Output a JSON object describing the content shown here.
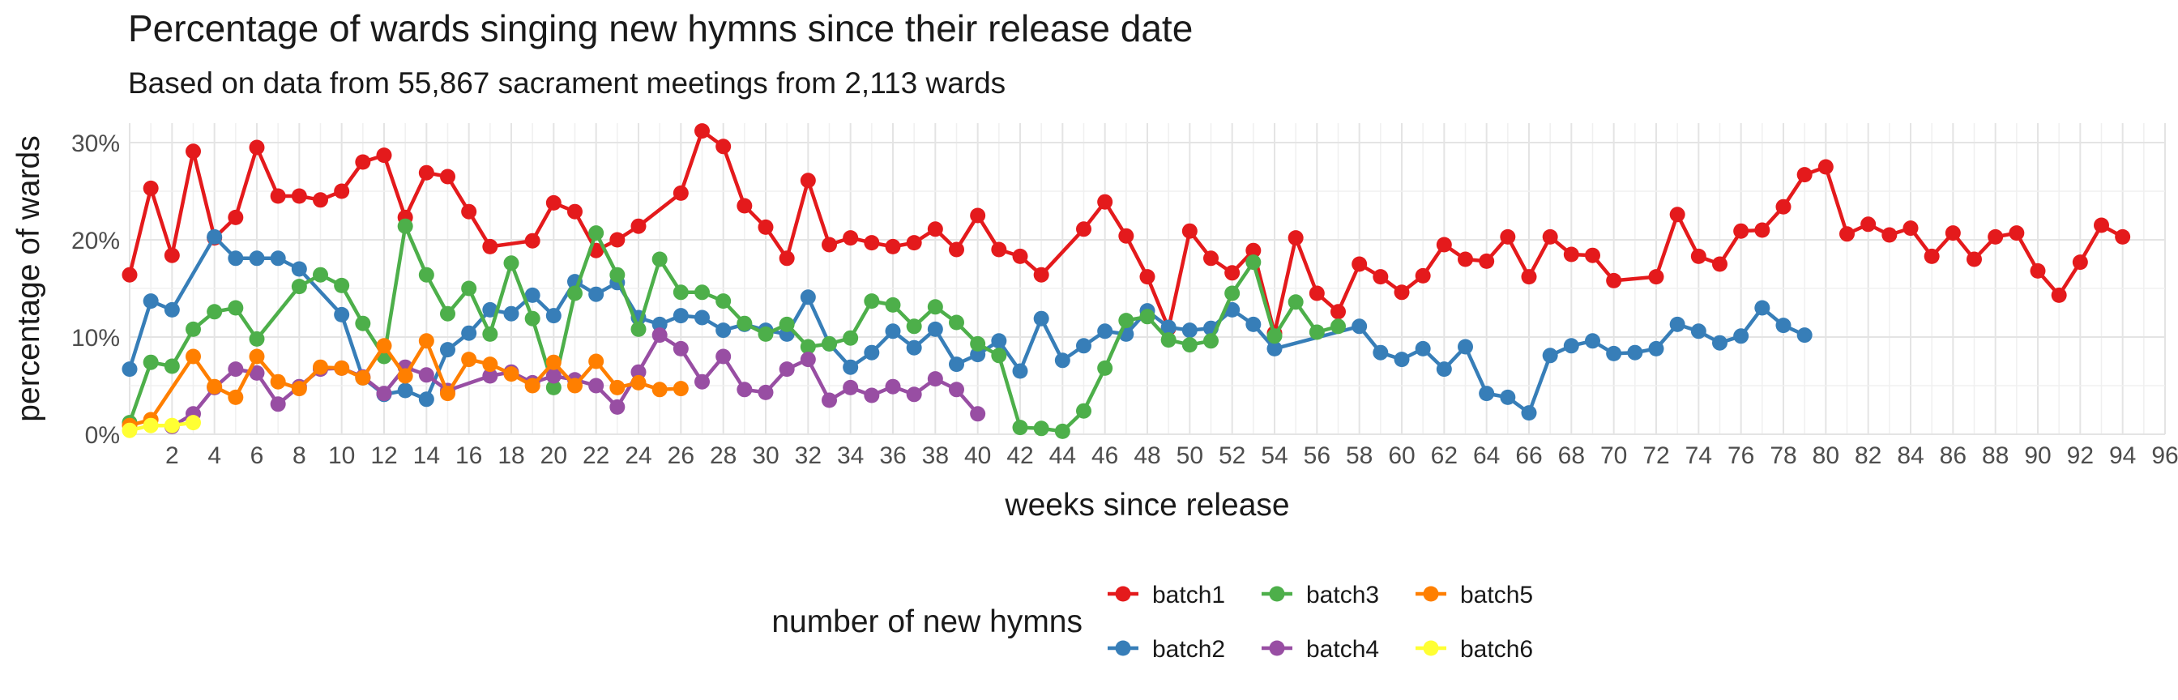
{
  "chart_data": {
    "type": "line",
    "title": "Percentage of wards singing new hymns since their release date",
    "subtitle": "Based on data from 55,867 sacrament meetings from 2,113 wards",
    "xlabel": "weeks since release",
    "ylabel": "percentage of wards",
    "xlim": [
      0,
      96
    ],
    "ylim": [
      0,
      0.32
    ],
    "x_ticks": [
      2,
      4,
      6,
      8,
      10,
      12,
      14,
      16,
      18,
      20,
      22,
      24,
      26,
      28,
      30,
      32,
      34,
      36,
      38,
      40,
      42,
      44,
      46,
      48,
      50,
      52,
      54,
      56,
      58,
      60,
      62,
      64,
      66,
      68,
      70,
      72,
      74,
      76,
      78,
      80,
      82,
      84,
      86,
      88,
      90,
      92,
      94,
      96
    ],
    "y_ticks": [
      0,
      0.1,
      0.2,
      0.3
    ],
    "y_tick_labels": [
      "0%",
      "10%",
      "20%",
      "30%"
    ],
    "grid": true,
    "legend": {
      "title": "number of new hymns",
      "position": "bottom"
    },
    "series": [
      {
        "name": "batch1",
        "color": "#E41A1C",
        "x": [
          0,
          1,
          2,
          3,
          4,
          5,
          6,
          7,
          8,
          9,
          10,
          11,
          12,
          13,
          14,
          15,
          16,
          17,
          19,
          20,
          21,
          22,
          23,
          24,
          26,
          27,
          28,
          29,
          30,
          31,
          32,
          33,
          34,
          35,
          36,
          37,
          38,
          39,
          40,
          41,
          42,
          43,
          45,
          46,
          47,
          48,
          49,
          50,
          51,
          52,
          53,
          54,
          55,
          56,
          57,
          58,
          59,
          60,
          61,
          62,
          63,
          64,
          65,
          66,
          67,
          68,
          69,
          70,
          72,
          73,
          74,
          75,
          76,
          77,
          78,
          79,
          80,
          81,
          82,
          83,
          84,
          85,
          86,
          87,
          88,
          89,
          90,
          91,
          92,
          93,
          94
        ],
        "y": [
          0.164,
          0.253,
          0.184,
          0.291,
          0.202,
          0.223,
          0.295,
          0.245,
          0.245,
          0.241,
          0.25,
          0.28,
          0.287,
          0.223,
          0.269,
          0.265,
          0.229,
          0.193,
          0.199,
          0.238,
          0.229,
          0.189,
          0.2,
          0.214,
          0.248,
          0.312,
          0.296,
          0.235,
          0.213,
          0.181,
          0.261,
          0.195,
          0.202,
          0.197,
          0.193,
          0.197,
          0.211,
          0.19,
          0.225,
          0.19,
          0.183,
          0.164,
          0.211,
          0.239,
          0.204,
          0.162,
          0.109,
          0.209,
          0.181,
          0.166,
          0.189,
          0.104,
          0.202,
          0.145,
          0.126,
          0.175,
          0.162,
          0.146,
          0.163,
          0.195,
          0.18,
          0.178,
          0.203,
          0.162,
          0.203,
          0.185,
          0.184,
          0.158,
          0.162,
          0.226,
          0.183,
          0.175,
          0.209,
          0.21,
          0.234,
          0.267,
          0.275,
          0.206,
          0.216,
          0.205,
          0.212,
          0.183,
          0.207,
          0.18,
          0.203,
          0.207,
          0.168,
          0.143,
          0.177,
          0.215,
          0.203
        ]
      },
      {
        "name": "batch2",
        "color": "#377EB8",
        "x": [
          0,
          1,
          2,
          4,
          5,
          6,
          7,
          8,
          10,
          11,
          12,
          13,
          14,
          15,
          16,
          17,
          18,
          19,
          20,
          21,
          22,
          23,
          24,
          25,
          26,
          27,
          28,
          29,
          30,
          31,
          32,
          33,
          34,
          35,
          36,
          37,
          38,
          39,
          40,
          41,
          42,
          43,
          44,
          45,
          46,
          47,
          48,
          49,
          50,
          51,
          52,
          53,
          54,
          58,
          59,
          60,
          61,
          62,
          63,
          64,
          65,
          66,
          67,
          68,
          69,
          70,
          71,
          72,
          73,
          74,
          75,
          76,
          77,
          78,
          79
        ],
        "y": [
          0.067,
          0.137,
          0.128,
          0.203,
          0.181,
          0.181,
          0.181,
          0.17,
          0.123,
          0.058,
          0.041,
          0.045,
          0.036,
          0.087,
          0.104,
          0.128,
          0.124,
          0.143,
          0.122,
          0.157,
          0.144,
          0.156,
          0.12,
          0.113,
          0.122,
          0.12,
          0.107,
          0.113,
          0.107,
          0.103,
          0.141,
          0.093,
          0.069,
          0.084,
          0.106,
          0.089,
          0.108,
          0.072,
          0.082,
          0.096,
          0.065,
          0.119,
          0.076,
          0.091,
          0.106,
          0.103,
          0.127,
          0.11,
          0.107,
          0.109,
          0.128,
          0.113,
          0.088,
          0.111,
          0.084,
          0.077,
          0.088,
          0.067,
          0.09,
          0.042,
          0.038,
          0.022,
          0.081,
          0.091,
          0.096,
          0.083,
          0.084,
          0.088,
          0.113,
          0.106,
          0.094,
          0.101,
          0.13,
          0.112,
          0.102
        ]
      },
      {
        "name": "batch3",
        "color": "#4DAF4A",
        "x": [
          0,
          1,
          2,
          3,
          4,
          5,
          6,
          8,
          9,
          10,
          11,
          12,
          13,
          14,
          15,
          16,
          17,
          18,
          19,
          20,
          21,
          22,
          23,
          24,
          25,
          26,
          27,
          28,
          29,
          30,
          31,
          32,
          33,
          34,
          35,
          36,
          37,
          38,
          39,
          40,
          41,
          42,
          43,
          44,
          45,
          46,
          47,
          48,
          49,
          50,
          51,
          52,
          53,
          54,
          55,
          56,
          57
        ],
        "y": [
          0.012,
          0.074,
          0.07,
          0.108,
          0.126,
          0.13,
          0.098,
          0.152,
          0.164,
          0.153,
          0.114,
          0.08,
          0.214,
          0.164,
          0.124,
          0.15,
          0.103,
          0.176,
          0.119,
          0.048,
          0.145,
          0.207,
          0.164,
          0.108,
          0.18,
          0.146,
          0.146,
          0.137,
          0.114,
          0.103,
          0.113,
          0.09,
          0.093,
          0.099,
          0.137,
          0.133,
          0.111,
          0.131,
          0.115,
          0.093,
          0.081,
          0.007,
          0.006,
          0.003,
          0.024,
          0.068,
          0.117,
          0.121,
          0.097,
          0.092,
          0.096,
          0.145,
          0.177,
          0.101,
          0.136,
          0.105,
          0.111
        ]
      },
      {
        "name": "batch4",
        "color": "#984EA3",
        "x": [
          2,
          3,
          4,
          5,
          6,
          7,
          8,
          9,
          10,
          11,
          12,
          13,
          14,
          15,
          17,
          18,
          19,
          20,
          21,
          22,
          23,
          24,
          25,
          26,
          27,
          28,
          29,
          30,
          31,
          32,
          33,
          34,
          35,
          36,
          37,
          38,
          39,
          40
        ],
        "y": [
          0.008,
          0.021,
          0.048,
          0.067,
          0.063,
          0.031,
          0.049,
          0.067,
          0.068,
          0.059,
          0.042,
          0.069,
          0.061,
          0.045,
          0.06,
          0.064,
          0.053,
          0.06,
          0.056,
          0.05,
          0.028,
          0.064,
          0.102,
          0.088,
          0.054,
          0.08,
          0.046,
          0.043,
          0.067,
          0.077,
          0.035,
          0.048,
          0.04,
          0.049,
          0.041,
          0.057,
          0.046,
          0.021
        ]
      },
      {
        "name": "batch5",
        "color": "#FF7F00",
        "x": [
          0,
          1,
          3,
          4,
          5,
          6,
          7,
          8,
          9,
          10,
          11,
          12,
          13,
          14,
          15,
          16,
          17,
          18,
          19,
          20,
          21,
          22,
          23,
          24,
          25,
          26
        ],
        "y": [
          0.009,
          0.015,
          0.08,
          0.049,
          0.038,
          0.08,
          0.054,
          0.047,
          0.069,
          0.068,
          0.058,
          0.091,
          0.06,
          0.096,
          0.042,
          0.077,
          0.072,
          0.062,
          0.05,
          0.074,
          0.05,
          0.075,
          0.048,
          0.053,
          0.046,
          0.047
        ]
      },
      {
        "name": "batch6",
        "color": "#FFFF33",
        "x": [
          0,
          1,
          2,
          3
        ],
        "y": [
          0.004,
          0.009,
          0.009,
          0.012
        ]
      }
    ]
  }
}
